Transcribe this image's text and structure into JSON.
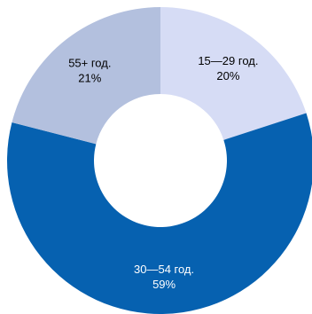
{
  "chart_data": {
    "type": "pie",
    "variant": "donut",
    "slices": [
      {
        "category": "15—29 год.",
        "value": 20,
        "value_label": "20%",
        "color": "#d6dcf5",
        "text_color": "#000000"
      },
      {
        "category": "30—54 год.",
        "value": 59,
        "value_label": "59%",
        "color": "#0661b0",
        "text_color": "#ffffff"
      },
      {
        "category": "55+ год.",
        "value": 21,
        "value_label": "21%",
        "color": "#b3c0de",
        "text_color": "#000000"
      }
    ],
    "title": "",
    "start_angle_deg": 0,
    "direction": "clockwise",
    "legend": "none"
  }
}
